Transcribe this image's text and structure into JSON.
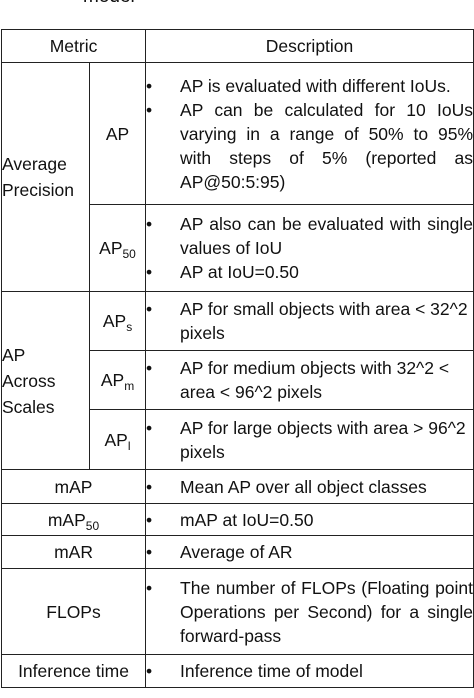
{
  "caption": "model",
  "table": {
    "headers": [
      "Metric",
      "Description"
    ],
    "groups": {
      "average_precision": "Average Precision",
      "ap_across_scales": "AP Across Scales"
    },
    "rows": {
      "ap": {
        "metric": "AP",
        "bullets": [
          "AP is evaluated with different IoUs.",
          "AP can be calculated for 10 IoUs varying in a range of 50% to 95% with steps of 5% (reported as AP@50:5:95)"
        ]
      },
      "ap50": {
        "metric_base": "AP",
        "metric_sub": "50",
        "bullets": [
          "AP also can be evaluated with single values of IoU",
          "AP at IoU=0.50"
        ]
      },
      "ap_s": {
        "metric_base": "AP",
        "metric_sub": "s",
        "bullets": [
          "AP for small objects with area < 32^2 pixels"
        ]
      },
      "ap_m": {
        "metric_base": "AP",
        "metric_sub": "m",
        "bullets": [
          "AP for medium objects with 32^2 < area < 96^2 pixels"
        ]
      },
      "ap_l": {
        "metric_base": "AP",
        "metric_sub": "l",
        "bullets": [
          "AP for large objects with area > 96^2 pixels"
        ]
      },
      "map": {
        "metric": "mAP",
        "bullets": [
          "Mean AP over all object classes"
        ]
      },
      "map50": {
        "metric_base": "mAP",
        "metric_sub": "50",
        "bullets": [
          "mAP at IoU=0.50"
        ]
      },
      "mar": {
        "metric": "mAR",
        "bullets": [
          "Average of AR"
        ]
      },
      "flops": {
        "metric": "FLOPs",
        "bullets": [
          "The number of FLOPs (Floating point Operations per Second) for a single forward-pass"
        ]
      },
      "inference": {
        "metric": "Inference time",
        "bullets": [
          "Inference time of model"
        ]
      }
    },
    "bullet_symbol": "•"
  }
}
